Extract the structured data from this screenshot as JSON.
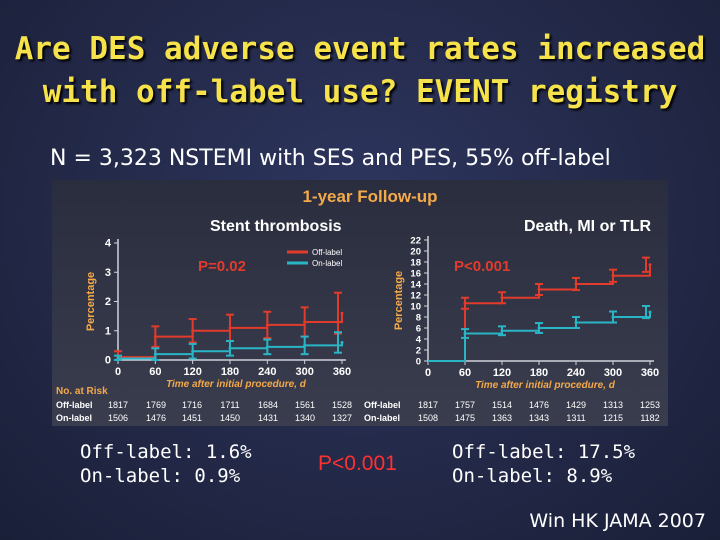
{
  "slide": {
    "title_line1": "Are DES adverse event rates increased",
    "title_line2": "with off-label use?  EVENT registry",
    "subtitle": "N = 3,323 NSTEMI with SES and PES, 55% off-label",
    "figure_header": "1-year Follow-up",
    "summary_left_line1": "Off-label: 1.6%",
    "summary_left_line2": "On-label: 0.9%",
    "summary_p": "P<0.001",
    "summary_right_line1": "Off-label: 17.5%",
    "summary_right_line2": "On-label: 8.9%",
    "citation": "Win HK JAMA 2007",
    "colors": {
      "title": "#f6e24a",
      "off_label": "#e23b2b",
      "on_label": "#29b5c6",
      "pvalue": "#ff3030"
    }
  },
  "chart_data": [
    {
      "type": "line",
      "title": "Stent thrombosis",
      "ylabel": "Percentage",
      "xlabel": "Time after initial procedure, d",
      "p_label": "P=0.02",
      "ylim": [
        0,
        4
      ],
      "yticks": [
        0,
        1,
        2,
        3,
        4
      ],
      "xlim": [
        0,
        360
      ],
      "xticks": [
        0,
        60,
        120,
        180,
        240,
        300,
        360
      ],
      "x": [
        0,
        60,
        120,
        180,
        240,
        300,
        360
      ],
      "legend": "top-right",
      "series": [
        {
          "name": "Off-label",
          "color": "#e23b2b",
          "values": [
            0.1,
            0.8,
            1.0,
            1.1,
            1.2,
            1.3,
            1.6
          ],
          "err": [
            0.2,
            0.35,
            0.4,
            0.45,
            0.45,
            0.5,
            0.7
          ]
        },
        {
          "name": "On-label",
          "color": "#29b5c6",
          "values": [
            0.05,
            0.2,
            0.3,
            0.4,
            0.45,
            0.5,
            0.6
          ],
          "err": [
            0.1,
            0.2,
            0.25,
            0.25,
            0.25,
            0.3,
            0.35
          ]
        }
      ],
      "at_risk_header": "No. at Risk",
      "at_risk": [
        {
          "label": "Off-label",
          "values": [
            "1817",
            "1769",
            "1716",
            "1711",
            "1684",
            "1561",
            "1528"
          ]
        },
        {
          "label": "On-label",
          "values": [
            "1506",
            "1476",
            "1451",
            "1450",
            "1431",
            "1340",
            "1327"
          ]
        }
      ]
    },
    {
      "type": "line",
      "title": "Death, MI or TLR",
      "ylabel": "Percentage",
      "xlabel": "Time after initial procedure, d",
      "p_label": "P<0.001",
      "ylim": [
        0,
        22
      ],
      "yticks": [
        0,
        2,
        4,
        6,
        8,
        10,
        12,
        14,
        16,
        18,
        20,
        22
      ],
      "xlim": [
        0,
        360
      ],
      "xticks": [
        0,
        60,
        120,
        180,
        240,
        300,
        360
      ],
      "x": [
        0,
        60,
        120,
        180,
        240,
        300,
        360
      ],
      "series": [
        {
          "name": "Off-label",
          "color": "#e23b2b",
          "values": [
            0,
            10.5,
            11.5,
            13.0,
            14.0,
            15.5,
            17.5
          ],
          "err": [
            0,
            1.0,
            1.0,
            1.0,
            1.1,
            1.1,
            1.3
          ]
        },
        {
          "name": "On-label",
          "color": "#29b5c6",
          "values": [
            0,
            5.0,
            5.5,
            6.0,
            7.0,
            8.0,
            8.9
          ],
          "err": [
            0,
            0.8,
            0.8,
            0.9,
            1.0,
            1.0,
            1.1
          ]
        }
      ],
      "at_risk": [
        {
          "label": "Off-label",
          "values": [
            "1817",
            "1757",
            "1514",
            "1476",
            "1429",
            "1313",
            "1253"
          ]
        },
        {
          "label": "On-label",
          "values": [
            "1508",
            "1475",
            "1363",
            "1343",
            "1311",
            "1215",
            "1182"
          ]
        }
      ]
    }
  ]
}
